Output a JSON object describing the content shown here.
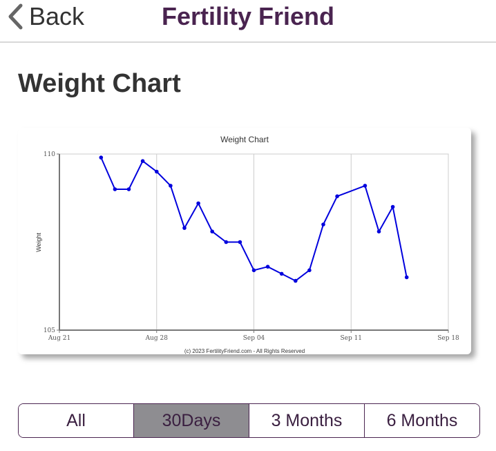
{
  "header": {
    "back_label": "Back",
    "app_title": "Fertility Friend"
  },
  "page": {
    "title": "Weight Chart"
  },
  "chart_data": {
    "type": "line",
    "title": "Weight Chart",
    "xlabel": "",
    "ylabel": "Weight",
    "footer": "(c) 2023 FertilityFriend.com - All Rights Reserved",
    "x_ticks": [
      "Aug 21",
      "Aug 28",
      "Sep 04",
      "Sep 11",
      "Sep 18"
    ],
    "y_ticks": [
      105,
      110
    ],
    "ylim": [
      105,
      110
    ],
    "xlim": [
      "2023-08-21",
      "2023-09-18"
    ],
    "grid": true,
    "colors": {
      "line": "#0000dd",
      "grid": "#cccccc",
      "axis": "#777777"
    },
    "series": [
      {
        "x": [
          "2023-08-24",
          "2023-08-25",
          "2023-08-26",
          "2023-08-27",
          "2023-08-28",
          "2023-08-29",
          "2023-08-30",
          "2023-08-31",
          "2023-09-01",
          "2023-09-02",
          "2023-09-03",
          "2023-09-04",
          "2023-09-05",
          "2023-09-06",
          "2023-09-07",
          "2023-09-08",
          "2023-09-09",
          "2023-09-10",
          "2023-09-12",
          "2023-09-13",
          "2023-09-14",
          "2023-09-15"
        ],
        "values": [
          109.9,
          109.0,
          109.0,
          109.8,
          109.5,
          109.1,
          107.9,
          108.6,
          107.8,
          107.5,
          107.5,
          106.7,
          106.8,
          106.6,
          106.4,
          106.7,
          108.0,
          108.8,
          109.1,
          107.8,
          108.5,
          106.5
        ]
      }
    ]
  },
  "range_options": [
    {
      "label": "All",
      "selected": false
    },
    {
      "label": "30Days",
      "selected": true
    },
    {
      "label": "3 Months",
      "selected": false
    },
    {
      "label": "6 Months",
      "selected": false
    }
  ]
}
